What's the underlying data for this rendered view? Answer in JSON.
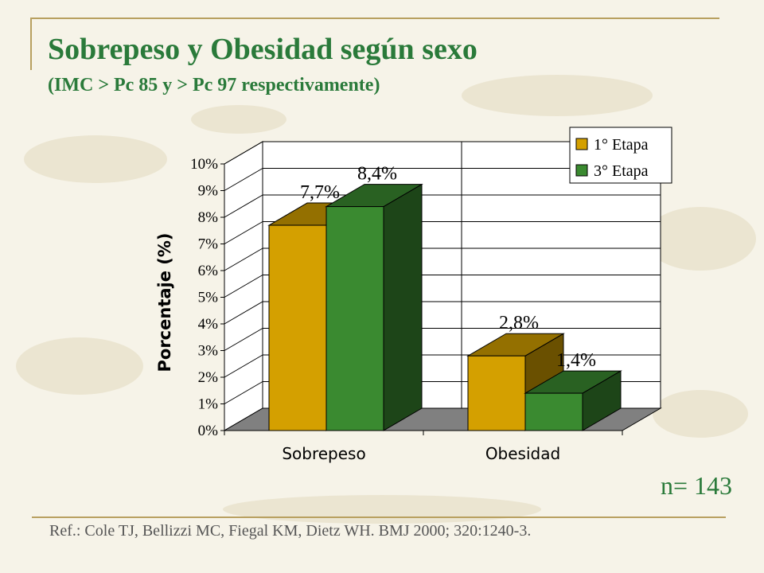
{
  "slide": {
    "title": "Sobrepeso y Obesidad según sexo",
    "subtitle": "(IMC > Pc 85 y > Pc 97 respectivamente)",
    "sample_size": "n= 143",
    "reference": "Ref.: Cole TJ, Bellizzi MC, Fiegal KM, Dietz WH.  BMJ 2000; 320:1240-3."
  },
  "colors": {
    "title": "#2a7a3a",
    "series1": "#d4a000",
    "series2": "#3a8a30",
    "floor": "#808080"
  },
  "chart_data": {
    "type": "bar",
    "categories": [
      "Sobrepeso",
      "Obesidad"
    ],
    "series": [
      {
        "name": "1° Etapa",
        "values": [
          7.7,
          2.8
        ],
        "labels": [
          "7,7%",
          "2,8%"
        ]
      },
      {
        "name": "3° Etapa",
        "values": [
          8.4,
          1.4
        ],
        "labels": [
          "8,4%",
          "1,4%"
        ]
      }
    ],
    "ylabel": "Porcentaje (%)",
    "yticks": [
      "0%",
      "1%",
      "2%",
      "3%",
      "4%",
      "5%",
      "6%",
      "7%",
      "8%",
      "9%",
      "10%"
    ],
    "ylim": [
      0,
      10
    ],
    "grid": true,
    "legend": "top-right",
    "style": "3d"
  }
}
